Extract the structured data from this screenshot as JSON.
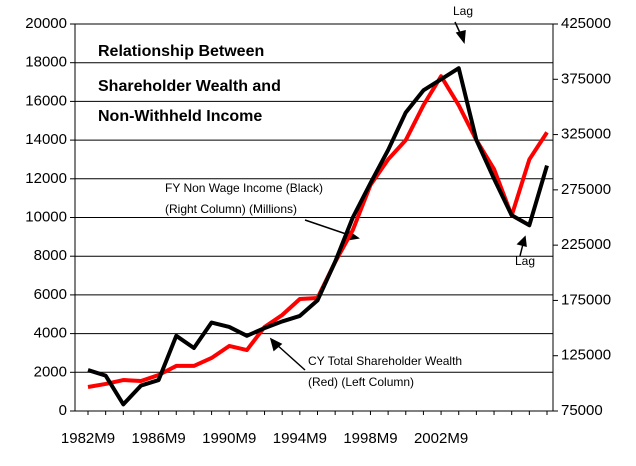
{
  "chart_data": {
    "type": "line",
    "title": [
      "Relationship Between",
      "Shareholder Wealth and",
      "Non-Withheld Income"
    ],
    "annotations": [
      "FY Non Wage Income (Black)",
      "(Right Column) (Millions)",
      "CY Total Shareholder Wealth",
      "(Red) (Left Column)",
      "Lag",
      "Lag"
    ],
    "categories": [
      "1982M9",
      null,
      null,
      null,
      "1986M9",
      null,
      null,
      null,
      "1990M9",
      null,
      null,
      null,
      "1994M9",
      null,
      null,
      null,
      "1998M9",
      null,
      null,
      null,
      "2002M9",
      null,
      null,
      null,
      null,
      null,
      null
    ],
    "series": [
      {
        "name": "CY Total Shareholder Wealth",
        "color": "#ff0000",
        "values": [
          1240,
          1400,
          1600,
          1550,
          1860,
          2330,
          2330,
          2740,
          3360,
          3150,
          4340,
          4960,
          5790,
          5840,
          7700,
          9350,
          11680,
          13000,
          14000,
          15800,
          17300,
          15800,
          14000,
          12500,
          10100,
          13000,
          14400
        ]
      },
      {
        "name": "FY Non Wage Income",
        "color": "#000000",
        "axis": "y2",
        "values": [
          112000,
          107000,
          81000,
          98000,
          103000,
          143000,
          132000,
          155000,
          151000,
          143000,
          150000,
          156000,
          161000,
          175000,
          210000,
          250000,
          281000,
          311000,
          345000,
          365000,
          375000,
          385000,
          320000,
          285000,
          252000,
          243000,
          297000
        ]
      }
    ],
    "ylim": [
      0,
      20000
    ],
    "yticks": [
      0,
      2000,
      4000,
      6000,
      8000,
      10000,
      12000,
      14000,
      16000,
      18000,
      20000
    ],
    "y2lim": [
      75000,
      425000
    ],
    "y2ticks": [
      75000,
      125000,
      175000,
      225000,
      275000,
      325000,
      375000,
      425000
    ],
    "grid": true
  }
}
